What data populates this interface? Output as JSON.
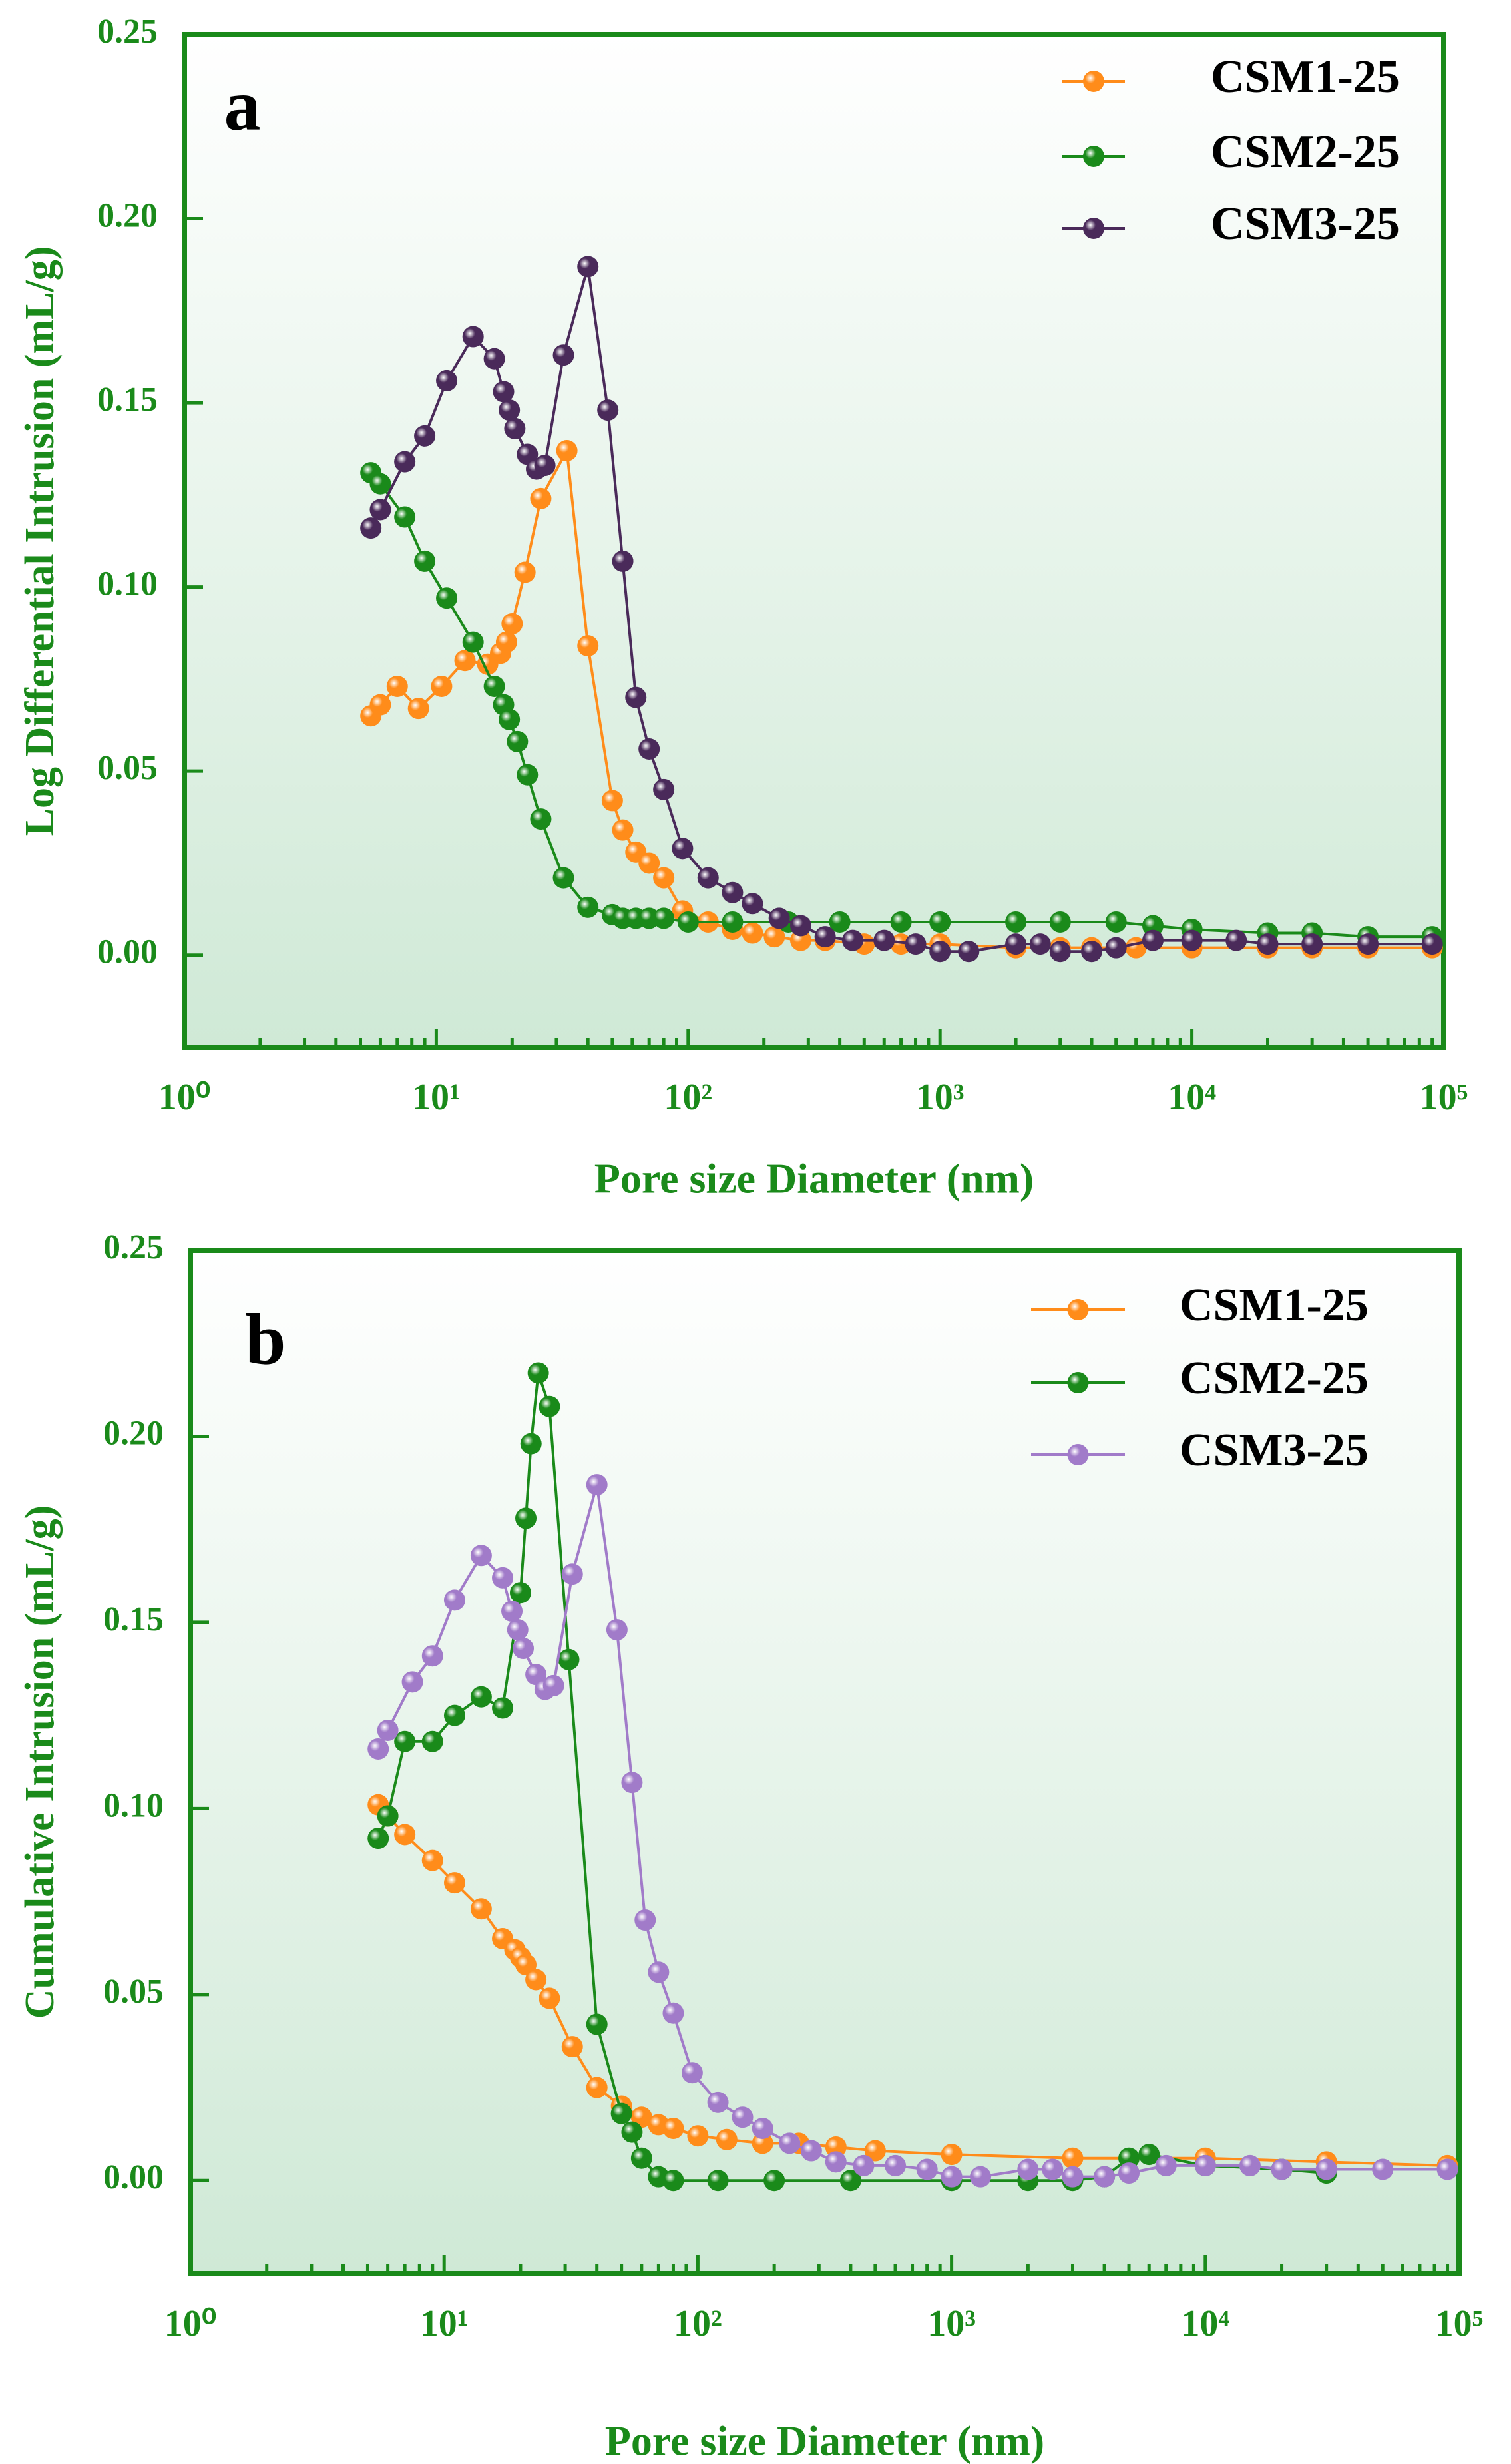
{
  "chart_data": [
    {
      "type": "line",
      "annotation": "a",
      "xlabel": "Pore size Diameter (nm)",
      "ylabel": "Log Differential Intrusion (mL/g)",
      "xscale": "log",
      "xlim": [
        1,
        100000
      ],
      "xticks": [
        {
          "value": 1,
          "label": "10⁰"
        },
        {
          "value": 10,
          "label": "10¹"
        },
        {
          "value": 100,
          "label": "10²"
        },
        {
          "value": 1000,
          "label": "10³"
        },
        {
          "value": 10000,
          "label": "10⁴"
        },
        {
          "value": 100000,
          "label": "10⁵"
        }
      ],
      "ylim": [
        -0.025,
        0.25
      ],
      "yticks": [
        {
          "value": 0,
          "label": "0.00"
        },
        {
          "value": 0.05,
          "label": "0.05"
        },
        {
          "value": 0.1,
          "label": "0.10"
        },
        {
          "value": 0.15,
          "label": "0.15"
        },
        {
          "value": 0.2,
          "label": "0.20"
        },
        {
          "value": 0.25,
          "label": "0.25"
        }
      ],
      "legend": "upper right",
      "series": [
        {
          "name": "CSM1-25",
          "color": "#ff8c1a",
          "x": [
            5.5,
            6,
            7,
            8.5,
            10.5,
            13,
            16,
            18,
            19,
            20,
            22.5,
            26,
            33,
            40,
            50,
            55,
            62,
            70,
            80,
            95,
            120,
            150,
            180,
            220,
            280,
            350,
            500,
            700,
            1000,
            2000,
            3000,
            4000,
            6000,
            10000,
            20000,
            30000,
            50000,
            90000
          ],
          "values": [
            0.065,
            0.068,
            0.073,
            0.067,
            0.073,
            0.08,
            0.079,
            0.082,
            0.085,
            0.09,
            0.104,
            0.124,
            0.137,
            0.084,
            0.042,
            0.034,
            0.028,
            0.025,
            0.021,
            0.012,
            0.009,
            0.007,
            0.006,
            0.005,
            0.004,
            0.004,
            0.003,
            0.003,
            0.003,
            0.002,
            0.002,
            0.002,
            0.002,
            0.002,
            0.002,
            0.002,
            0.002,
            0.002
          ]
        },
        {
          "name": "CSM2-25",
          "color": "#1a8a1a",
          "x": [
            5.5,
            6,
            7.5,
            9,
            11,
            14,
            17,
            18.5,
            19.5,
            21,
            23,
            26,
            32,
            40,
            50,
            55,
            62,
            70,
            80,
            100,
            150,
            250,
            400,
            700,
            1000,
            2000,
            3000,
            5000,
            7000,
            10000,
            20000,
            30000,
            50000,
            90000
          ],
          "values": [
            0.131,
            0.128,
            0.119,
            0.107,
            0.097,
            0.085,
            0.073,
            0.068,
            0.064,
            0.058,
            0.049,
            0.037,
            0.021,
            0.013,
            0.011,
            0.01,
            0.01,
            0.01,
            0.01,
            0.009,
            0.009,
            0.009,
            0.009,
            0.009,
            0.009,
            0.009,
            0.009,
            0.009,
            0.008,
            0.007,
            0.006,
            0.006,
            0.005,
            0.005
          ]
        },
        {
          "name": "CSM3-25",
          "color": "#4a2a5a",
          "x": [
            5.5,
            6,
            7.5,
            9,
            11,
            14,
            17,
            18.5,
            19.5,
            20.5,
            23,
            25,
            27,
            32,
            40,
            48,
            55,
            62,
            70,
            80,
            95,
            120,
            150,
            180,
            230,
            280,
            350,
            450,
            600,
            800,
            1000,
            1300,
            2000,
            2500,
            3000,
            4000,
            5000,
            7000,
            10000,
            15000,
            20000,
            30000,
            50000,
            90000
          ],
          "values": [
            0.116,
            0.121,
            0.134,
            0.141,
            0.156,
            0.168,
            0.162,
            0.153,
            0.148,
            0.143,
            0.136,
            0.132,
            0.133,
            0.163,
            0.187,
            0.148,
            0.107,
            0.07,
            0.056,
            0.045,
            0.029,
            0.021,
            0.017,
            0.014,
            0.01,
            0.008,
            0.005,
            0.004,
            0.004,
            0.003,
            0.001,
            0.001,
            0.003,
            0.003,
            0.001,
            0.001,
            0.002,
            0.004,
            0.004,
            0.004,
            0.003,
            0.003,
            0.003,
            0.003
          ]
        }
      ]
    },
    {
      "type": "line",
      "annotation": "b",
      "xlabel": "Pore size Diameter (nm)",
      "ylabel": "Cumulative Intrusion (mL/g)",
      "xscale": "log",
      "xlim": [
        1,
        100000
      ],
      "xticks": [
        {
          "value": 1,
          "label": "10⁰"
        },
        {
          "value": 10,
          "label": "10¹"
        },
        {
          "value": 100,
          "label": "10²"
        },
        {
          "value": 1000,
          "label": "10³"
        },
        {
          "value": 10000,
          "label": "10⁴"
        },
        {
          "value": 100000,
          "label": "10⁵"
        }
      ],
      "ylim": [
        -0.025,
        0.25
      ],
      "yticks": [
        {
          "value": 0,
          "label": "0.00"
        },
        {
          "value": 0.05,
          "label": "0.05"
        },
        {
          "value": 0.1,
          "label": "0.10"
        },
        {
          "value": 0.15,
          "label": "0.15"
        },
        {
          "value": 0.2,
          "label": "0.20"
        },
        {
          "value": 0.25,
          "label": "0.25"
        }
      ],
      "legend": "upper right",
      "series": [
        {
          "name": "CSM1-25",
          "color": "#ff8c1a",
          "x": [
            5.5,
            6,
            7,
            9,
            11,
            14,
            17,
            19,
            20,
            21,
            23,
            26,
            32,
            40,
            50,
            60,
            70,
            80,
            100,
            130,
            180,
            250,
            350,
            500,
            1000,
            3000,
            10000,
            30000,
            90000
          ],
          "values": [
            0.101,
            0.098,
            0.093,
            0.086,
            0.08,
            0.073,
            0.065,
            0.062,
            0.06,
            0.058,
            0.054,
            0.049,
            0.036,
            0.025,
            0.02,
            0.017,
            0.015,
            0.014,
            0.012,
            0.011,
            0.01,
            0.01,
            0.009,
            0.008,
            0.007,
            0.006,
            0.006,
            0.005,
            0.004
          ]
        },
        {
          "name": "CSM2-25",
          "color": "#1a8a1a",
          "x": [
            5.5,
            6,
            7,
            9,
            11,
            14,
            17,
            20,
            21,
            22,
            23.5,
            26,
            31,
            40,
            50,
            55,
            60,
            70,
            80,
            120,
            200,
            400,
            1000,
            2000,
            3000,
            4000,
            5000,
            6000,
            10000,
            20000,
            30000
          ],
          "values": [
            0.092,
            0.098,
            0.118,
            0.118,
            0.125,
            0.13,
            0.127,
            0.158,
            0.178,
            0.198,
            0.217,
            0.208,
            0.14,
            0.042,
            0.018,
            0.013,
            0.006,
            0.001,
            0,
            0,
            0,
            0,
            0,
            0,
            0,
            0.001,
            0.006,
            0.007,
            0.004,
            0.003,
            0.002
          ]
        },
        {
          "name": "CSM3-25",
          "color": "#a17bc9",
          "x": [
            5.5,
            6,
            7.5,
            9,
            11,
            14,
            17,
            18.5,
            19.5,
            20.5,
            23,
            25,
            27,
            32,
            40,
            48,
            55,
            62,
            70,
            80,
            95,
            120,
            150,
            180,
            230,
            280,
            350,
            450,
            600,
            800,
            1000,
            1300,
            2000,
            2500,
            3000,
            4000,
            5000,
            7000,
            10000,
            15000,
            20000,
            30000,
            50000,
            90000
          ],
          "values": [
            0.116,
            0.121,
            0.134,
            0.141,
            0.156,
            0.168,
            0.162,
            0.153,
            0.148,
            0.143,
            0.136,
            0.132,
            0.133,
            0.163,
            0.187,
            0.148,
            0.107,
            0.07,
            0.056,
            0.045,
            0.029,
            0.021,
            0.017,
            0.014,
            0.01,
            0.008,
            0.005,
            0.004,
            0.004,
            0.003,
            0.001,
            0.001,
            0.003,
            0.003,
            0.001,
            0.001,
            0.002,
            0.004,
            0.004,
            0.004,
            0.003,
            0.003,
            0.003,
            0.003
          ]
        }
      ]
    }
  ]
}
